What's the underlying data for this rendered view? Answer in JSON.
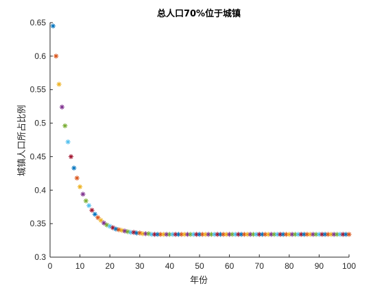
{
  "chart_data": {
    "type": "scatter",
    "title": "总人口70%位于城镇",
    "xlabel": "年份",
    "ylabel": "城镇人口所占比例",
    "xlim": [
      0,
      100
    ],
    "ylim": [
      0.3,
      0.65
    ],
    "xticks": [
      0,
      10,
      20,
      30,
      40,
      50,
      60,
      70,
      80,
      90,
      100
    ],
    "yticks": [
      0.3,
      0.35,
      0.4,
      0.45,
      0.5,
      0.55,
      0.6,
      0.65
    ],
    "xtick_labels": [
      "0",
      "10",
      "20",
      "30",
      "40",
      "50",
      "60",
      "70",
      "80",
      "90",
      "100"
    ],
    "ytick_labels": [
      "0.3",
      "0.35",
      "0.4",
      "0.45",
      "0.5",
      "0.55",
      "0.6",
      "0.65"
    ],
    "marker": "asterisk",
    "grid": false,
    "box": "left-bottom",
    "colors": [
      "#0072BD",
      "#D95319",
      "#EDB120",
      "#7E2F8E",
      "#77AC30",
      "#4DBEEE",
      "#A2142F"
    ],
    "series": [
      {
        "x": [
          1,
          2,
          3,
          4,
          5,
          6,
          7,
          8,
          9,
          10,
          11,
          12,
          13,
          14,
          15,
          16,
          17,
          18,
          19,
          20,
          21,
          22,
          23,
          24,
          25,
          26,
          27,
          28,
          29,
          30,
          31,
          32,
          33,
          34,
          35,
          36,
          37,
          38,
          39,
          40,
          41,
          42,
          43,
          44,
          45,
          46,
          47,
          48,
          49,
          50,
          51,
          52,
          53,
          54,
          55,
          56,
          57,
          58,
          59,
          60,
          61,
          62,
          63,
          64,
          65,
          66,
          67,
          68,
          69,
          70,
          71,
          72,
          73,
          74,
          75,
          76,
          77,
          78,
          79,
          80,
          81,
          82,
          83,
          84,
          85,
          86,
          87,
          88,
          89,
          90,
          91,
          92,
          93,
          94,
          95,
          96,
          97,
          98,
          99,
          100
        ],
        "y": [
          0.645,
          0.6,
          0.558,
          0.524,
          0.496,
          0.472,
          0.45,
          0.433,
          0.418,
          0.405,
          0.394,
          0.384,
          0.377,
          0.37,
          0.364,
          0.359,
          0.355,
          0.351,
          0.348,
          0.346,
          0.344,
          0.342,
          0.341,
          0.34,
          0.339,
          0.338,
          0.337,
          0.337,
          0.336,
          0.336,
          0.335,
          0.335,
          0.335,
          0.334,
          0.334,
          0.334,
          0.334,
          0.334,
          0.334,
          0.334,
          0.334,
          0.334,
          0.334,
          0.334,
          0.334,
          0.334,
          0.334,
          0.334,
          0.334,
          0.334,
          0.334,
          0.334,
          0.334,
          0.334,
          0.334,
          0.334,
          0.334,
          0.334,
          0.334,
          0.334,
          0.334,
          0.334,
          0.334,
          0.334,
          0.334,
          0.334,
          0.334,
          0.334,
          0.334,
          0.334,
          0.334,
          0.334,
          0.334,
          0.334,
          0.334,
          0.334,
          0.334,
          0.334,
          0.334,
          0.334,
          0.334,
          0.334,
          0.334,
          0.334,
          0.334,
          0.334,
          0.334,
          0.334,
          0.334,
          0.334,
          0.334,
          0.334,
          0.334,
          0.334,
          0.334,
          0.334,
          0.334,
          0.334,
          0.334,
          0.334
        ]
      }
    ]
  }
}
